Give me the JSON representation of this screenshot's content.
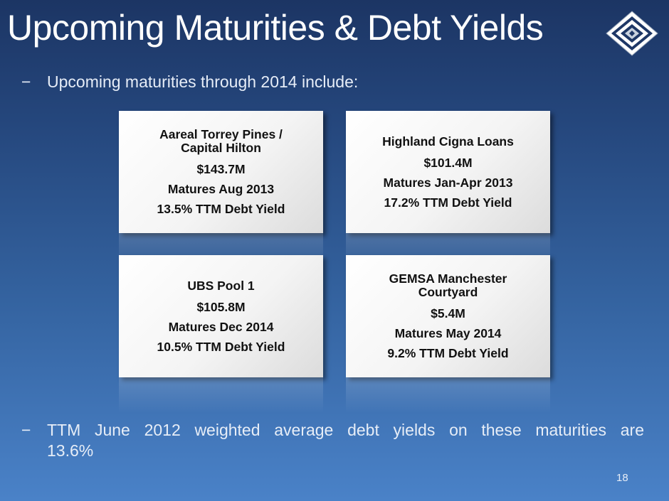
{
  "title": "Upcoming Maturities & Debt Yields",
  "bullets": {
    "dash": "−",
    "intro": "Upcoming maturities through 2014 include:",
    "summary_line1": "TTM June 2012 weighted average debt yields on these maturities are",
    "summary_line2": "13.6%"
  },
  "cards": [
    {
      "name_line1": "Aareal Torrey Pines /",
      "name_line2": "Capital Hilton",
      "amount": "$143.7M",
      "maturity": "Matures Aug 2013",
      "yield": "13.5% TTM Debt Yield"
    },
    {
      "name_line1": "Highland Cigna Loans",
      "name_line2": "",
      "amount": "$101.4M",
      "maturity": "Matures Jan-Apr 2013",
      "yield": "17.2% TTM Debt Yield"
    },
    {
      "name_line1": "UBS Pool 1",
      "name_line2": "",
      "amount": "$105.8M",
      "maturity": "Matures Dec 2014",
      "yield": "10.5% TTM Debt Yield"
    },
    {
      "name_line1": "GEMSA Manchester",
      "name_line2": "Courtyard",
      "amount": "$5.4M",
      "maturity": "Matures May 2014",
      "yield": "9.2% TTM Debt Yield"
    }
  ],
  "page_number": "18",
  "colors": {
    "background_top": "#1c3564",
    "background_bottom": "#4a82c8",
    "card": "#f4f4f4",
    "text": "#ffffff"
  },
  "logo_icon": "diamond-logo-icon"
}
